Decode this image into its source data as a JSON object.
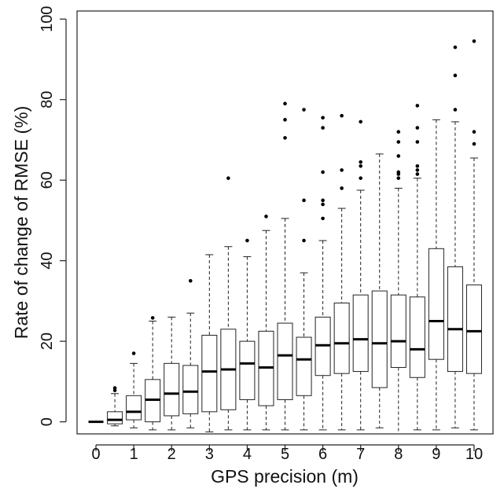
{
  "chart_data": {
    "type": "boxplot",
    "xlabel": "GPS precision (m)",
    "ylabel": "Rate of change of RMSE (%)",
    "xlim": [
      -0.5,
      10.5
    ],
    "ylim": [
      -3,
      102
    ],
    "x_ticks": [
      0,
      1,
      2,
      3,
      4,
      5,
      6,
      7,
      8,
      9,
      10
    ],
    "y_ticks": [
      0,
      20,
      40,
      60,
      80,
      100
    ],
    "grid": false,
    "legend": "none",
    "colors": {
      "box_fill": "#ffffff",
      "stroke": "#222222",
      "median": "#000000",
      "outlier": "#000000"
    },
    "boxes": [
      {
        "x": 0.0,
        "whisker_low": 0.0,
        "q1": 0.0,
        "median": 0.0,
        "q3": 0.0,
        "whisker_high": 0.0,
        "outliers": []
      },
      {
        "x": 0.5,
        "whisker_low": -1.0,
        "q1": -0.5,
        "median": 0.5,
        "q3": 2.5,
        "whisker_high": 7.0,
        "outliers": [
          7.8,
          8.4
        ]
      },
      {
        "x": 1.0,
        "whisker_low": -1.5,
        "q1": 0.5,
        "median": 2.5,
        "q3": 6.5,
        "whisker_high": 14.5,
        "outliers": [
          17.0
        ]
      },
      {
        "x": 1.5,
        "whisker_low": -2.0,
        "q1": 0.0,
        "median": 5.5,
        "q3": 10.5,
        "whisker_high": 25.0,
        "outliers": [
          25.8
        ]
      },
      {
        "x": 2.0,
        "whisker_low": -2.0,
        "q1": 1.5,
        "median": 7.0,
        "q3": 14.5,
        "whisker_high": 26.0,
        "outliers": []
      },
      {
        "x": 2.5,
        "whisker_low": -1.5,
        "q1": 2.0,
        "median": 7.5,
        "q3": 14.0,
        "whisker_high": 27.0,
        "outliers": [
          35.0
        ]
      },
      {
        "x": 3.0,
        "whisker_low": -2.5,
        "q1": 2.5,
        "median": 12.5,
        "q3": 21.5,
        "whisker_high": 41.5,
        "outliers": []
      },
      {
        "x": 3.5,
        "whisker_low": -2.0,
        "q1": 3.0,
        "median": 13.0,
        "q3": 23.0,
        "whisker_high": 43.5,
        "outliers": [
          60.5
        ]
      },
      {
        "x": 4.0,
        "whisker_low": -2.0,
        "q1": 5.5,
        "median": 14.5,
        "q3": 20.0,
        "whisker_high": 41.0,
        "outliers": [
          45.0
        ]
      },
      {
        "x": 4.5,
        "whisker_low": -2.0,
        "q1": 4.0,
        "median": 13.5,
        "q3": 22.5,
        "whisker_high": 47.5,
        "outliers": [
          51.0
        ]
      },
      {
        "x": 5.0,
        "whisker_low": -2.0,
        "q1": 5.5,
        "median": 16.5,
        "q3": 24.5,
        "whisker_high": 50.5,
        "outliers": [
          70.5,
          75.0,
          79.0
        ]
      },
      {
        "x": 5.5,
        "whisker_low": -2.0,
        "q1": 6.5,
        "median": 15.5,
        "q3": 21.0,
        "whisker_high": 37.0,
        "outliers": [
          45.0,
          55.0,
          77.5
        ]
      },
      {
        "x": 6.0,
        "whisker_low": -2.0,
        "q1": 11.5,
        "median": 19.0,
        "q3": 26.0,
        "whisker_high": 45.0,
        "outliers": [
          50.5,
          54.0,
          55.0,
          62.0,
          73.0,
          75.5
        ]
      },
      {
        "x": 6.5,
        "whisker_low": -2.0,
        "q1": 12.0,
        "median": 19.5,
        "q3": 29.5,
        "whisker_high": 53.0,
        "outliers": [
          58.0,
          62.5,
          76.0
        ]
      },
      {
        "x": 7.0,
        "whisker_low": -2.0,
        "q1": 12.5,
        "median": 20.5,
        "q3": 31.5,
        "whisker_high": 57.5,
        "outliers": [
          60.5,
          63.5,
          64.5,
          74.5
        ]
      },
      {
        "x": 7.5,
        "whisker_low": -1.5,
        "q1": 8.5,
        "median": 19.5,
        "q3": 32.5,
        "whisker_high": 66.5,
        "outliers": []
      },
      {
        "x": 8.0,
        "whisker_low": -3.0,
        "q1": 13.5,
        "median": 20.0,
        "q3": 31.5,
        "whisker_high": 58.0,
        "outliers": [
          60.5,
          61.5,
          62.0,
          66.0,
          69.5,
          72.0
        ]
      },
      {
        "x": 8.5,
        "whisker_low": -2.0,
        "q1": 11.0,
        "median": 18.0,
        "q3": 31.0,
        "whisker_high": 60.5,
        "outliers": [
          61.5,
          62.5,
          63.5,
          69.5,
          73.0,
          78.5
        ]
      },
      {
        "x": 9.0,
        "whisker_low": -2.0,
        "q1": 15.5,
        "median": 25.0,
        "q3": 43.0,
        "whisker_high": 75.0,
        "outliers": []
      },
      {
        "x": 9.5,
        "whisker_low": -1.5,
        "q1": 12.5,
        "median": 23.0,
        "q3": 38.5,
        "whisker_high": 74.5,
        "outliers": [
          77.5,
          86.0,
          93.0
        ]
      },
      {
        "x": 10.0,
        "whisker_low": -2.0,
        "q1": 12.0,
        "median": 22.5,
        "q3": 34.0,
        "whisker_high": 65.5,
        "outliers": [
          69.0,
          72.0,
          94.5
        ]
      }
    ]
  }
}
